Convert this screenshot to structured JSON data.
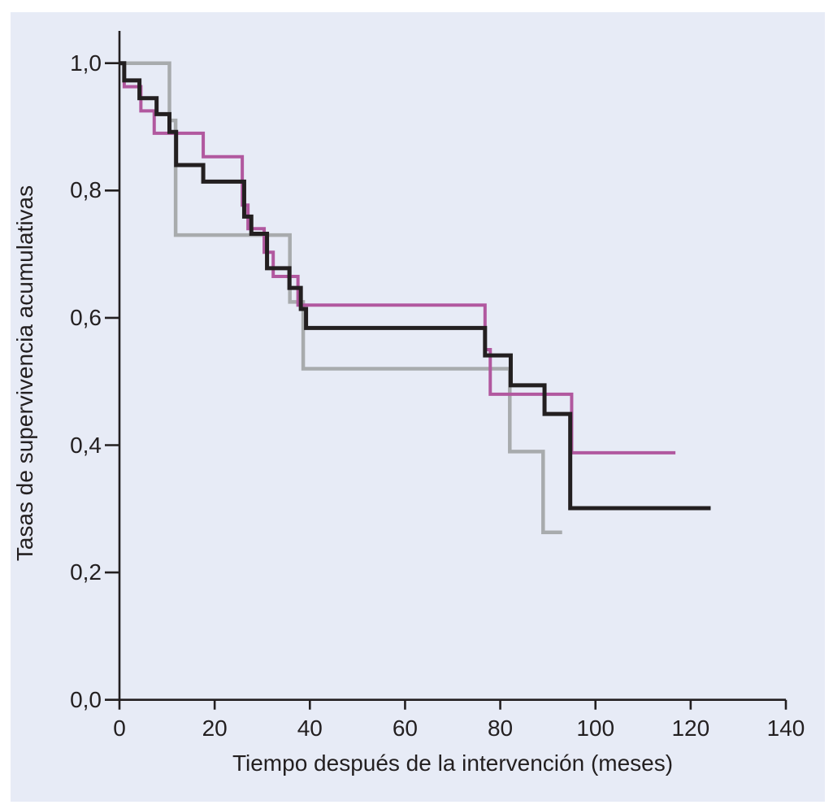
{
  "figure": {
    "background_color": "#ffffff",
    "panel_color": "#e7ebf6",
    "text_color": "#231f20",
    "axis_color": "#231f20"
  },
  "chart_data": {
    "type": "line",
    "subtype": "kaplan-meier-step-survival",
    "title": "",
    "xlabel": "Tiempo después de la intervención (meses)",
    "ylabel": "Tasas de supervivencia acumulativas",
    "xlim": [
      0,
      140
    ],
    "ylim": [
      0.0,
      1.0
    ],
    "grid": false,
    "legend": "none",
    "x_ticks": [
      0,
      20,
      40,
      60,
      80,
      100,
      120,
      140
    ],
    "x_tick_labels": [
      "0",
      "20",
      "40",
      "60",
      "80",
      "100",
      "120",
      "140"
    ],
    "y_ticks": [
      1.0,
      0.8,
      0.6,
      0.4,
      0.2,
      0.0
    ],
    "y_tick_labels": [
      "1,0",
      "0,8",
      "0,6",
      "0,4",
      "0,2",
      "0,0"
    ],
    "series": [
      {
        "name": "gray",
        "color": "#a8abad",
        "width": 4.5,
        "steps": [
          [
            0,
            1.0
          ],
          [
            10.5,
            0.91
          ],
          [
            11.8,
            0.73
          ],
          [
            35.8,
            0.625
          ],
          [
            38.6,
            0.52
          ],
          [
            82,
            0.39
          ],
          [
            89,
            0.263
          ]
        ],
        "end": 93
      },
      {
        "name": "magenta",
        "color": "#b1589f",
        "width": 4,
        "steps": [
          [
            0,
            1.0
          ],
          [
            1,
            0.963
          ],
          [
            4.5,
            0.925
          ],
          [
            7.3,
            0.89
          ],
          [
            17.6,
            0.853
          ],
          [
            25.8,
            0.777
          ],
          [
            27,
            0.74
          ],
          [
            30.4,
            0.703
          ],
          [
            32.3,
            0.665
          ],
          [
            37.5,
            0.62
          ],
          [
            76.8,
            0.55
          ],
          [
            77.9,
            0.48
          ],
          [
            95,
            0.388
          ]
        ],
        "end": 116.8
      },
      {
        "name": "black",
        "color": "#231f20",
        "width": 5,
        "steps": [
          [
            0,
            1.0
          ],
          [
            1,
            0.973
          ],
          [
            4.2,
            0.945
          ],
          [
            7.8,
            0.92
          ],
          [
            10.5,
            0.892
          ],
          [
            11.9,
            0.84
          ],
          [
            17.6,
            0.814
          ],
          [
            26.2,
            0.759
          ],
          [
            27.7,
            0.732
          ],
          [
            31,
            0.678
          ],
          [
            35.7,
            0.647
          ],
          [
            38.1,
            0.614
          ],
          [
            39.2,
            0.584
          ],
          [
            76.8,
            0.541
          ],
          [
            82.2,
            0.494
          ],
          [
            89.3,
            0.449
          ],
          [
            94.7,
            0.301
          ]
        ],
        "end": 124.2
      }
    ]
  }
}
